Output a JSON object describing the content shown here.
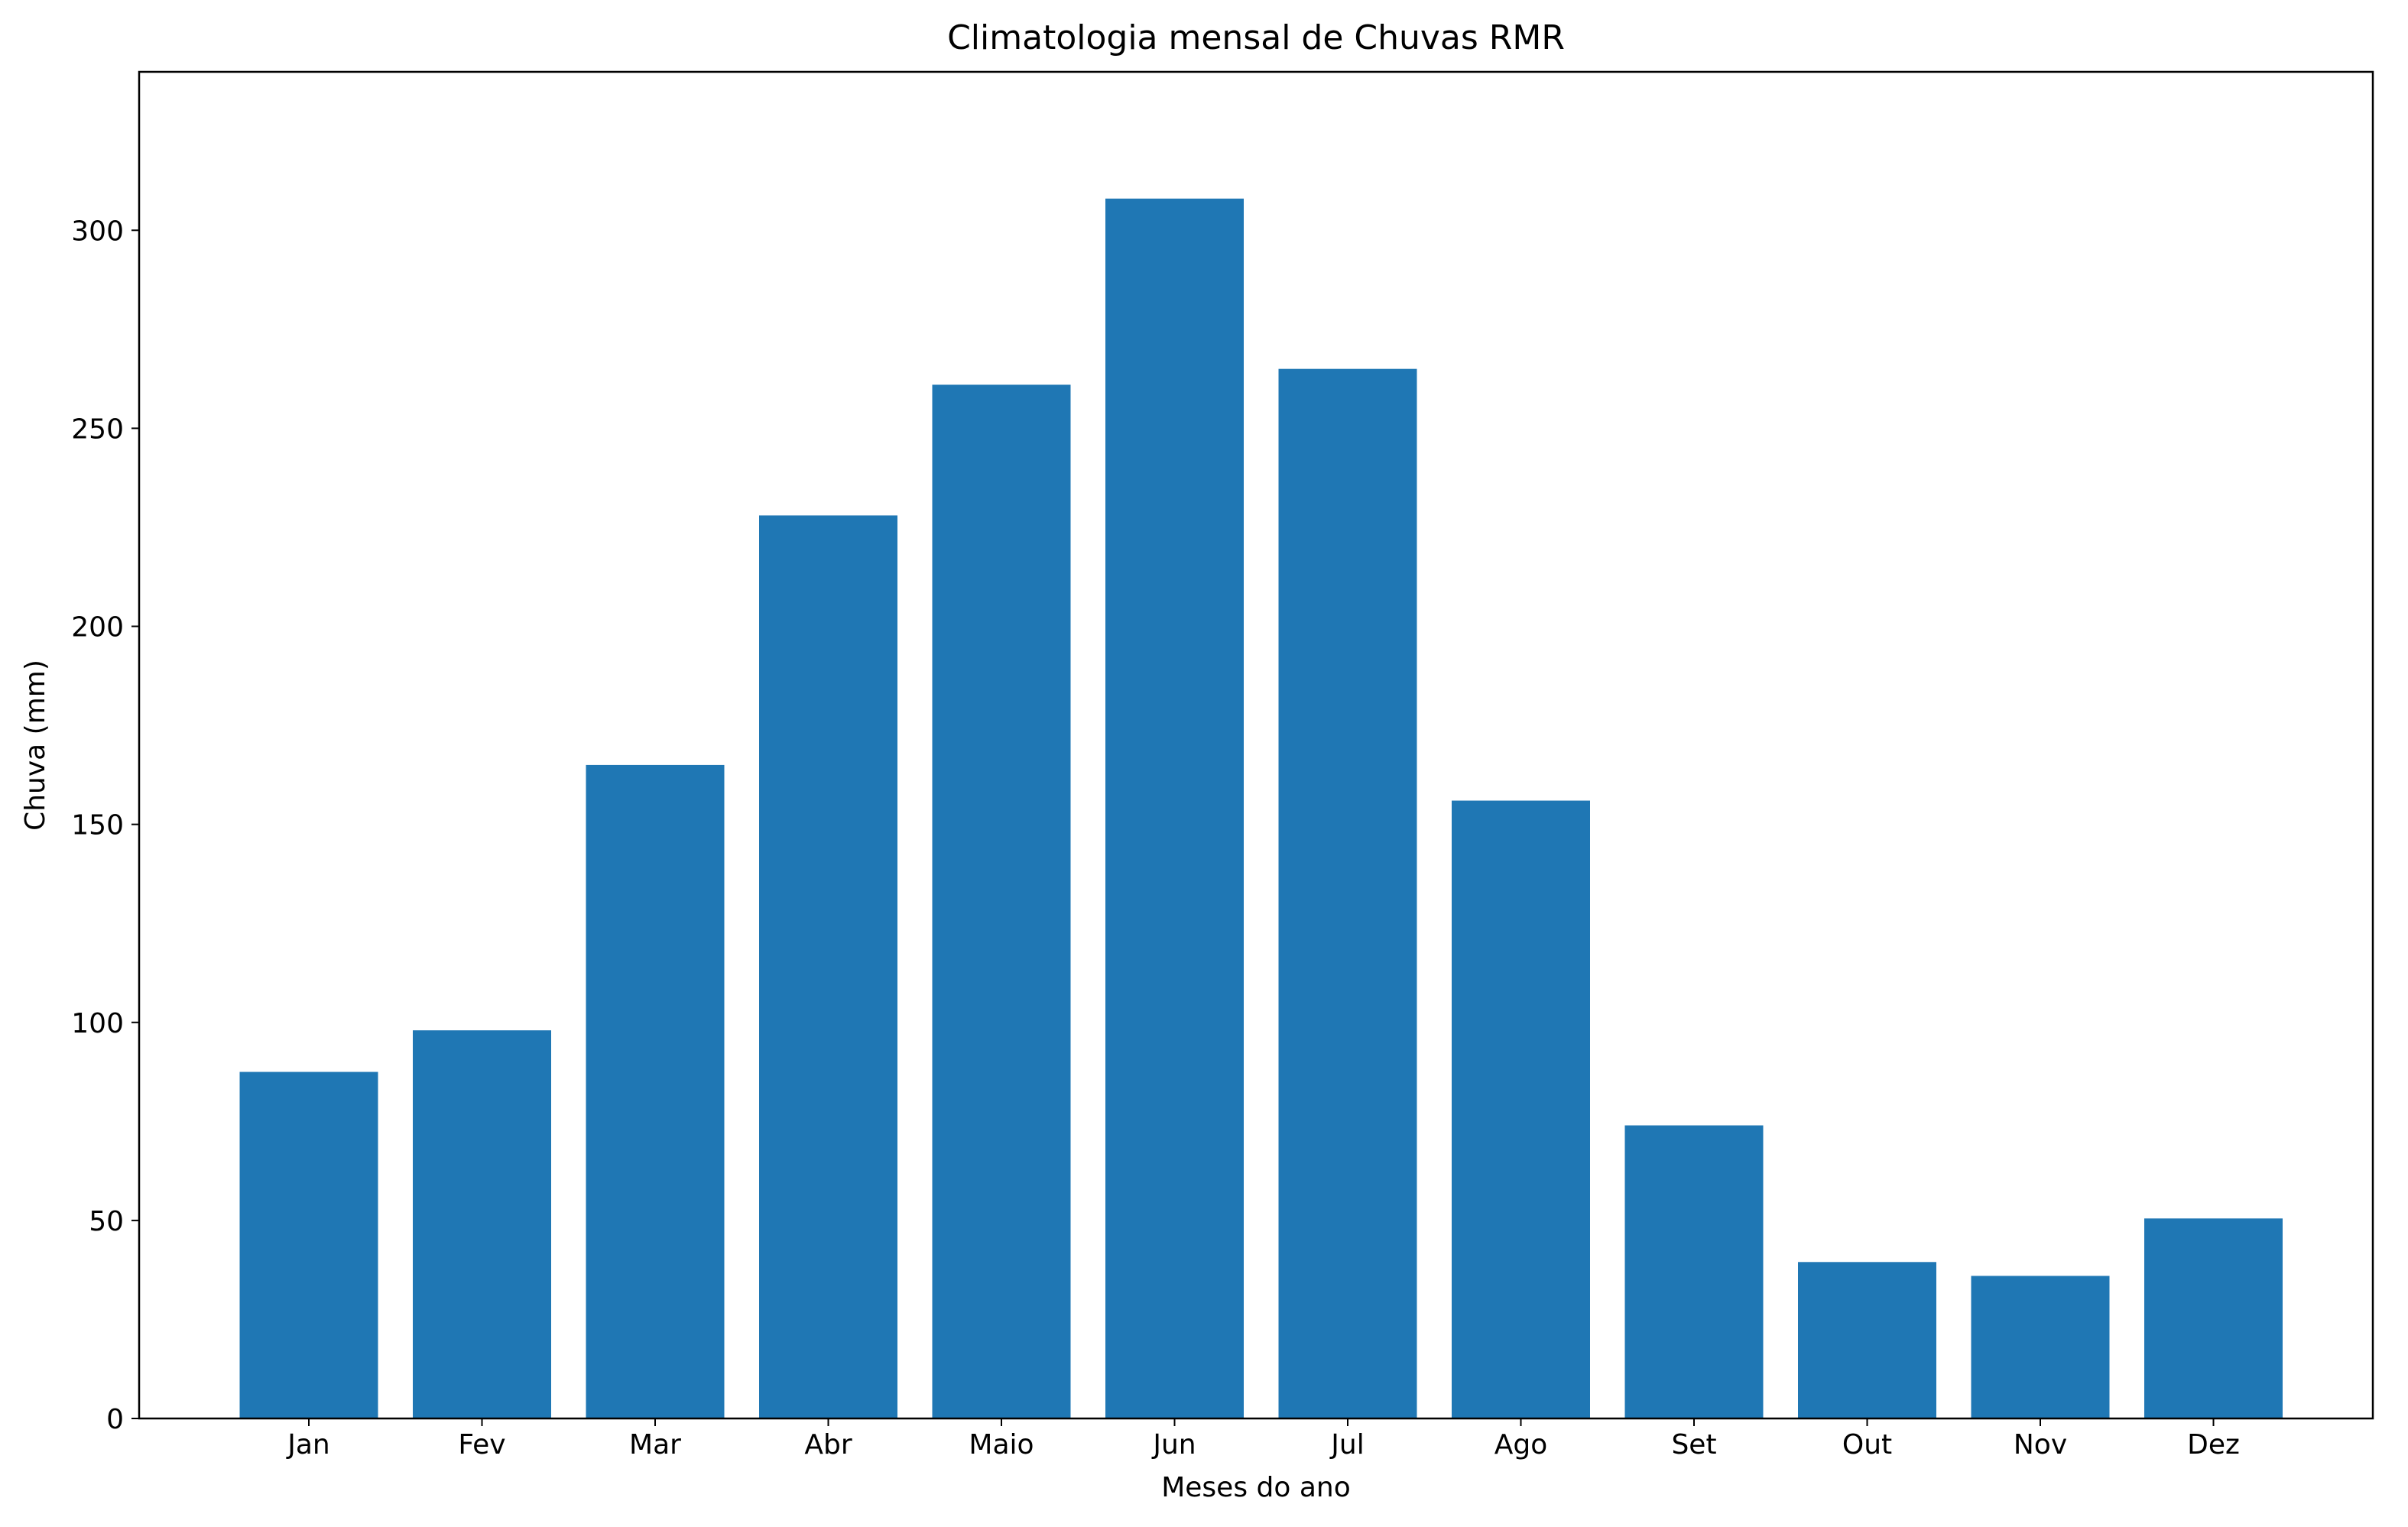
{
  "chart_data": {
    "type": "bar",
    "title": "Climatologia mensal de Chuvas RMR",
    "xlabel": "Meses do ano",
    "ylabel": "Chuva (mm)",
    "categories": [
      "Jan",
      "Fev",
      "Mar",
      "Abr",
      "Maio",
      "Jun",
      "Jul",
      "Ago",
      "Set",
      "Out",
      "Nov",
      "Dez"
    ],
    "values": [
      87.5,
      98,
      165,
      228,
      261,
      308,
      265,
      156,
      74,
      39.5,
      36,
      50.5
    ],
    "ylim": [
      0,
      340
    ],
    "yticks": [
      0,
      50,
      100,
      150,
      200,
      250,
      300
    ],
    "ytick_labels": [
      "0",
      "50",
      "100",
      "150",
      "200",
      "250",
      "300"
    ],
    "grid": false,
    "bar_color": "#1f77b4"
  }
}
